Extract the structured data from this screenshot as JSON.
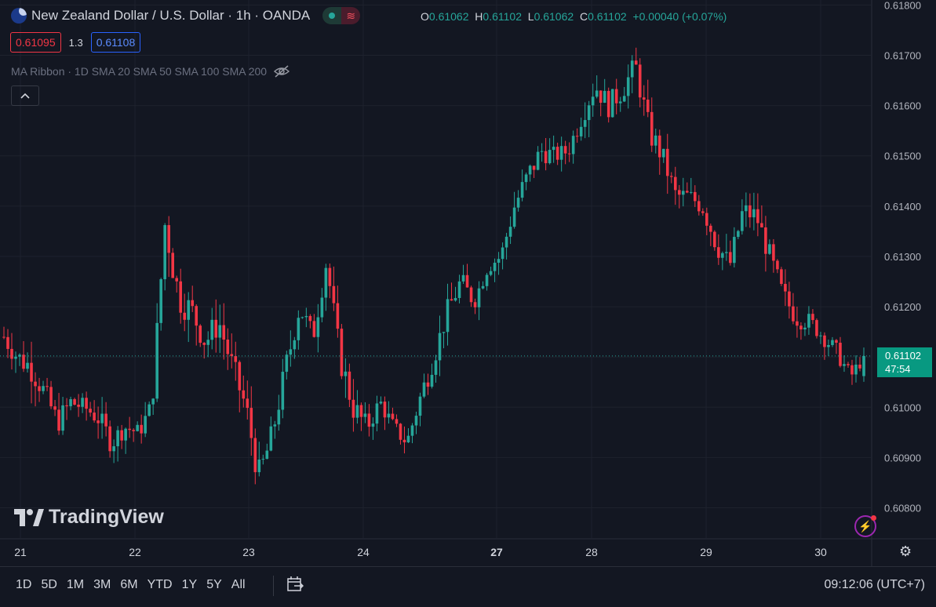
{
  "header": {
    "symbol_title": "New Zealand Dollar / U.S. Dollar · 1h · OANDA",
    "ohlc": {
      "o_label": "O",
      "o": "0.61062",
      "h_label": "H",
      "h": "0.61102",
      "l_label": "L",
      "l": "0.61062",
      "c_label": "C",
      "c": "0.61102",
      "change": "+0.00040 (+0.07%)"
    },
    "bid": "0.61095",
    "spread": "1.3",
    "ask": "0.61108",
    "indicator": "MA Ribbon · 1D SMA 20 SMA 50 SMA 100 SMA 200"
  },
  "price_tag": {
    "price": "0.61102",
    "countdown": "47:54"
  },
  "brand": "TradingView",
  "toolbar": {
    "ranges": [
      "1D",
      "5D",
      "1M",
      "3M",
      "6M",
      "YTD",
      "1Y",
      "5Y",
      "All"
    ],
    "clock": "09:12:06 (UTC+7)"
  },
  "colors": {
    "up": "#26a69a",
    "down": "#f23645",
    "background": "#131722",
    "grid": "#1e222d"
  },
  "chart_data": {
    "type": "candlestick",
    "y_ticks": [
      "0.61800",
      "0.61700",
      "0.61600",
      "0.61500",
      "0.61400",
      "0.61300",
      "0.61200",
      "0.61100",
      "0.61000",
      "0.60900",
      "0.60800"
    ],
    "ylim": [
      0.6074,
      0.6181
    ],
    "x_ticks": [
      {
        "label": "21",
        "bold": false
      },
      {
        "label": "22",
        "bold": false
      },
      {
        "label": "23",
        "bold": false
      },
      {
        "label": "24",
        "bold": false
      },
      {
        "label": "27",
        "bold": true
      },
      {
        "label": "28",
        "bold": false
      },
      {
        "label": "29",
        "bold": false
      },
      {
        "label": "30",
        "bold": false
      }
    ],
    "last_price": 0.61102,
    "anchors": [
      {
        "close": 0.6114,
        "dev": 0.0004
      },
      {
        "close": 0.611,
        "dev": 0.0004
      },
      {
        "close": 0.6108,
        "dev": 0.0005
      },
      {
        "close": 0.6103,
        "dev": 0.0004
      },
      {
        "close": 0.6097,
        "dev": 0.0004
      },
      {
        "close": 0.6101,
        "dev": 0.0004
      },
      {
        "close": 0.61,
        "dev": 0.0003
      },
      {
        "close": 0.6098,
        "dev": 0.0004
      },
      {
        "close": 0.6093,
        "dev": 0.0004
      },
      {
        "close": 0.6096,
        "dev": 0.0003
      },
      {
        "close": 0.6095,
        "dev": 0.0003
      },
      {
        "close": 0.61,
        "dev": 0.0004
      },
      {
        "close": 0.6137,
        "dev": 0.0007
      },
      {
        "close": 0.6122,
        "dev": 0.0006
      },
      {
        "close": 0.6119,
        "dev": 0.0005
      },
      {
        "close": 0.6113,
        "dev": 0.0005
      },
      {
        "close": 0.6117,
        "dev": 0.0005
      },
      {
        "close": 0.6108,
        "dev": 0.0005
      },
      {
        "close": 0.61,
        "dev": 0.0005
      },
      {
        "close": 0.6086,
        "dev": 0.0006
      },
      {
        "close": 0.6095,
        "dev": 0.0004
      },
      {
        "close": 0.6108,
        "dev": 0.0005
      },
      {
        "close": 0.612,
        "dev": 0.0004
      },
      {
        "close": 0.6114,
        "dev": 0.0004
      },
      {
        "close": 0.6129,
        "dev": 0.0004
      },
      {
        "close": 0.611,
        "dev": 0.0005
      },
      {
        "close": 0.61,
        "dev": 0.0005
      },
      {
        "close": 0.6096,
        "dev": 0.0004
      },
      {
        "close": 0.6101,
        "dev": 0.0003
      },
      {
        "close": 0.6096,
        "dev": 0.0003
      },
      {
        "close": 0.6093,
        "dev": 0.0003
      },
      {
        "close": 0.6102,
        "dev": 0.0004
      },
      {
        "close": 0.611,
        "dev": 0.0004
      },
      {
        "close": 0.6119,
        "dev": 0.0004
      },
      {
        "close": 0.6125,
        "dev": 0.0004
      },
      {
        "close": 0.6121,
        "dev": 0.0003
      },
      {
        "close": 0.6128,
        "dev": 0.0003
      },
      {
        "close": 0.613,
        "dev": 0.0003
      },
      {
        "close": 0.614,
        "dev": 0.0004
      },
      {
        "close": 0.6146,
        "dev": 0.0004
      },
      {
        "close": 0.6151,
        "dev": 0.0004
      },
      {
        "close": 0.615,
        "dev": 0.0003
      },
      {
        "close": 0.6151,
        "dev": 0.0003
      },
      {
        "close": 0.6158,
        "dev": 0.0004
      },
      {
        "close": 0.6164,
        "dev": 0.0004
      },
      {
        "close": 0.616,
        "dev": 0.0004
      },
      {
        "close": 0.6163,
        "dev": 0.0004
      },
      {
        "close": 0.6168,
        "dev": 0.0004
      },
      {
        "close": 0.6155,
        "dev": 0.0005
      },
      {
        "close": 0.615,
        "dev": 0.0004
      },
      {
        "close": 0.6142,
        "dev": 0.0004
      },
      {
        "close": 0.6142,
        "dev": 0.0003
      },
      {
        "close": 0.614,
        "dev": 0.0004
      },
      {
        "close": 0.6133,
        "dev": 0.0005
      },
      {
        "close": 0.6128,
        "dev": 0.0004
      },
      {
        "close": 0.6139,
        "dev": 0.0004
      },
      {
        "close": 0.6138,
        "dev": 0.0004
      },
      {
        "close": 0.613,
        "dev": 0.0004
      },
      {
        "close": 0.6122,
        "dev": 0.0004
      },
      {
        "close": 0.6118,
        "dev": 0.0004
      },
      {
        "close": 0.6117,
        "dev": 0.0003
      },
      {
        "close": 0.6114,
        "dev": 0.0003
      },
      {
        "close": 0.6111,
        "dev": 0.0003
      },
      {
        "close": 0.6106,
        "dev": 0.0003
      },
      {
        "close": 0.611,
        "dev": 0.0002
      }
    ]
  }
}
